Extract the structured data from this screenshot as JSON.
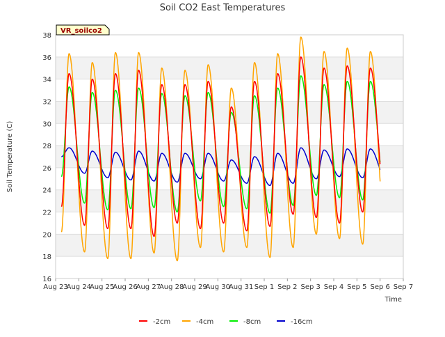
{
  "chart_data": {
    "type": "line",
    "title": "Soil CO2 East Temperatures",
    "xlabel": "Time",
    "ylabel": "Soil Temperature (C)",
    "site_label": "VR_soilco2",
    "ylim": [
      16,
      38
    ],
    "yticks": [
      16,
      18,
      20,
      22,
      24,
      26,
      28,
      30,
      32,
      34,
      36,
      38
    ],
    "xlim": [
      0,
      15
    ],
    "xticks": [
      "Aug 23",
      "Aug 24",
      "Aug 25",
      "Aug 26",
      "Aug 27",
      "Aug 28",
      "Aug 29",
      "Aug 30",
      "Aug 31",
      "Sep 1",
      "Sep 2",
      "Sep 3",
      "Sep 4",
      "Sep 5",
      "Sep 6",
      "Sep 7"
    ],
    "day_start": 0.25,
    "day_end": 14.0,
    "grid": true,
    "legend_position": "bottom",
    "series": [
      {
        "name": "-2cm",
        "color": "#ff0000",
        "max": [
          34.5,
          34.0,
          34.5,
          34.8,
          33.5,
          33.5,
          33.8,
          31.5,
          33.8,
          34.5,
          36.0,
          35.0,
          35.2,
          35.0
        ],
        "min": [
          22.5,
          20.8,
          20.5,
          20.5,
          19.8,
          21.0,
          20.5,
          21.0,
          20.3,
          20.7,
          21.8,
          21.5,
          21.0,
          22.0,
          22.5
        ]
      },
      {
        "name": "-4cm",
        "color": "#ffa500",
        "max": [
          36.3,
          35.5,
          36.4,
          36.4,
          35.0,
          34.8,
          35.3,
          33.2,
          35.5,
          36.3,
          37.8,
          36.5,
          36.8,
          36.5
        ],
        "min": [
          20.2,
          18.4,
          17.8,
          17.8,
          18.3,
          17.6,
          18.8,
          18.4,
          18.8,
          17.9,
          18.8,
          20.0,
          19.6,
          19.1,
          19.6,
          20.3
        ]
      },
      {
        "name": "-8cm",
        "color": "#00ee00",
        "max": [
          33.3,
          32.8,
          33.0,
          33.2,
          32.7,
          32.5,
          32.8,
          31.0,
          32.5,
          33.2,
          34.3,
          33.5,
          33.8,
          33.8
        ],
        "min": [
          25.2,
          22.8,
          22.2,
          22.3,
          22.4,
          22.0,
          23.0,
          22.5,
          22.3,
          21.9,
          22.6,
          23.5,
          23.3,
          23.1,
          23.3,
          25.0
        ]
      },
      {
        "name": "-16cm",
        "color": "#0000cc",
        "max": [
          27.8,
          27.5,
          27.4,
          27.5,
          27.3,
          27.3,
          27.3,
          26.7,
          27.0,
          27.3,
          27.8,
          27.6,
          27.7,
          27.7
        ],
        "min": [
          27.0,
          25.5,
          25.1,
          24.9,
          24.8,
          24.7,
          25.0,
          24.8,
          24.6,
          24.4,
          24.6,
          25.0,
          25.2,
          25.1,
          25.0,
          26.5
        ]
      }
    ]
  }
}
